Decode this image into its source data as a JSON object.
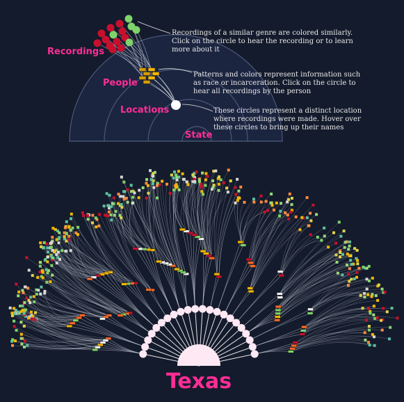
{
  "legend": {
    "labels": {
      "recordings": "Recordings",
      "people": "People",
      "locations": "Locations",
      "state": "State"
    },
    "notes": {
      "recordings": [
        "Recordings of a similar genre are colored similarly.",
        "Click on the circle to hear the recording or to learn",
        "more about it"
      ],
      "people": [
        "Patterns and colors represent information such",
        "as race or incarceration. Click on the circle to",
        "hear all recordings by the person"
      ],
      "locations": [
        "These circles represent a distinct location",
        "where recordings were made. Hover over",
        "these circles to bring up their names"
      ]
    }
  },
  "main": {
    "state_name": "Texas",
    "location_count": 22
  },
  "colors": {
    "background": "#141b2c",
    "accent": "#ff2d95",
    "ring": "#4a5878",
    "recording_red": "#c8102e",
    "recording_green": "#7fd36a",
    "people_yellow": "#f2b705",
    "link": "#cfd4e0"
  }
}
